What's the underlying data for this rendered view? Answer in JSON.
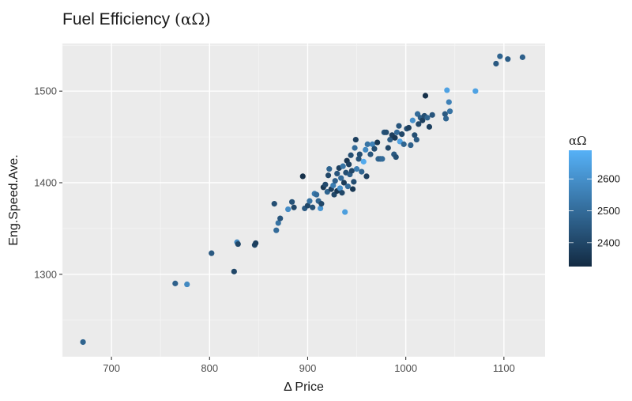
{
  "title_main": "Fuel Efficiency ",
  "title_greek": "(αΩ)",
  "chart_data": {
    "type": "scatter",
    "title": "Fuel Efficiency (αΩ)",
    "xlabel": "Δ Price",
    "ylabel": "Eng.Speed.Ave.",
    "xlim": [
      650,
      1142
    ],
    "ylim": [
      1210,
      1552
    ],
    "x_ticks": [
      700,
      800,
      900,
      1000,
      1100
    ],
    "y_ticks": [
      1300,
      1400,
      1500
    ],
    "grid": true,
    "legend": {
      "title": "αΩ",
      "type": "colorbar",
      "position": "right",
      "range": [
        2325,
        2690
      ],
      "ticks": [
        2400,
        2500,
        2600
      ],
      "color_low": "#132B43",
      "color_high": "#56B1F7"
    },
    "points": [
      {
        "x": 671,
        "y": 1226,
        "c": 2480
      },
      {
        "x": 765,
        "y": 1290,
        "c": 2470
      },
      {
        "x": 777,
        "y": 1289,
        "c": 2580
      },
      {
        "x": 802,
        "y": 1323,
        "c": 2450
      },
      {
        "x": 825,
        "y": 1303,
        "c": 2400
      },
      {
        "x": 828,
        "y": 1335,
        "c": 2580
      },
      {
        "x": 829,
        "y": 1333,
        "c": 2400
      },
      {
        "x": 846,
        "y": 1332,
        "c": 2400
      },
      {
        "x": 847,
        "y": 1334,
        "c": 2380
      },
      {
        "x": 866,
        "y": 1377,
        "c": 2420
      },
      {
        "x": 868,
        "y": 1348,
        "c": 2500
      },
      {
        "x": 870,
        "y": 1356,
        "c": 2520
      },
      {
        "x": 872,
        "y": 1361,
        "c": 2440
      },
      {
        "x": 880,
        "y": 1371,
        "c": 2590
      },
      {
        "x": 884,
        "y": 1379,
        "c": 2430
      },
      {
        "x": 886,
        "y": 1373,
        "c": 2400
      },
      {
        "x": 895,
        "y": 1407,
        "c": 2340
      },
      {
        "x": 897,
        "y": 1372,
        "c": 2450
      },
      {
        "x": 900,
        "y": 1375,
        "c": 2400
      },
      {
        "x": 902,
        "y": 1380,
        "c": 2520
      },
      {
        "x": 905,
        "y": 1373,
        "c": 2430
      },
      {
        "x": 907,
        "y": 1388,
        "c": 2540
      },
      {
        "x": 909,
        "y": 1387,
        "c": 2500
      },
      {
        "x": 911,
        "y": 1380,
        "c": 2480
      },
      {
        "x": 913,
        "y": 1372,
        "c": 2620
      },
      {
        "x": 914,
        "y": 1377,
        "c": 2400
      },
      {
        "x": 916,
        "y": 1395,
        "c": 2360
      },
      {
        "x": 918,
        "y": 1398,
        "c": 2410
      },
      {
        "x": 920,
        "y": 1390,
        "c": 2480
      },
      {
        "x": 921,
        "y": 1408,
        "c": 2400
      },
      {
        "x": 922,
        "y": 1415,
        "c": 2480
      },
      {
        "x": 924,
        "y": 1393,
        "c": 2380
      },
      {
        "x": 926,
        "y": 1397,
        "c": 2550
      },
      {
        "x": 927,
        "y": 1387,
        "c": 2400
      },
      {
        "x": 928,
        "y": 1402,
        "c": 2470
      },
      {
        "x": 930,
        "y": 1410,
        "c": 2440
      },
      {
        "x": 930,
        "y": 1391,
        "c": 2360
      },
      {
        "x": 932,
        "y": 1416,
        "c": 2380
      },
      {
        "x": 933,
        "y": 1394,
        "c": 2600
      },
      {
        "x": 934,
        "y": 1405,
        "c": 2500
      },
      {
        "x": 935,
        "y": 1389,
        "c": 2400
      },
      {
        "x": 936,
        "y": 1418,
        "c": 2520
      },
      {
        "x": 937,
        "y": 1400,
        "c": 2370
      },
      {
        "x": 938,
        "y": 1368,
        "c": 2640
      },
      {
        "x": 939,
        "y": 1411,
        "c": 2420
      },
      {
        "x": 940,
        "y": 1424,
        "c": 2350
      },
      {
        "x": 941,
        "y": 1396,
        "c": 2500
      },
      {
        "x": 942,
        "y": 1420,
        "c": 2380
      },
      {
        "x": 943,
        "y": 1409,
        "c": 2460
      },
      {
        "x": 944,
        "y": 1430,
        "c": 2420
      },
      {
        "x": 945,
        "y": 1413,
        "c": 2400
      },
      {
        "x": 946,
        "y": 1393,
        "c": 2360
      },
      {
        "x": 947,
        "y": 1401,
        "c": 2420
      },
      {
        "x": 948,
        "y": 1438,
        "c": 2500
      },
      {
        "x": 949,
        "y": 1447,
        "c": 2380
      },
      {
        "x": 950,
        "y": 1415,
        "c": 2550
      },
      {
        "x": 952,
        "y": 1426,
        "c": 2430
      },
      {
        "x": 953,
        "y": 1431,
        "c": 2420
      },
      {
        "x": 955,
        "y": 1412,
        "c": 2480
      },
      {
        "x": 957,
        "y": 1423,
        "c": 2670
      },
      {
        "x": 959,
        "y": 1436,
        "c": 2580
      },
      {
        "x": 960,
        "y": 1407,
        "c": 2380
      },
      {
        "x": 961,
        "y": 1442,
        "c": 2520
      },
      {
        "x": 964,
        "y": 1431,
        "c": 2440
      },
      {
        "x": 966,
        "y": 1442,
        "c": 2560
      },
      {
        "x": 968,
        "y": 1437,
        "c": 2420
      },
      {
        "x": 971,
        "y": 1444,
        "c": 2360
      },
      {
        "x": 972,
        "y": 1426,
        "c": 2480
      },
      {
        "x": 974,
        "y": 1426,
        "c": 2470
      },
      {
        "x": 976,
        "y": 1426,
        "c": 2500
      },
      {
        "x": 978,
        "y": 1455,
        "c": 2440
      },
      {
        "x": 980,
        "y": 1455,
        "c": 2420
      },
      {
        "x": 982,
        "y": 1438,
        "c": 2400
      },
      {
        "x": 984,
        "y": 1447,
        "c": 2460
      },
      {
        "x": 986,
        "y": 1452,
        "c": 2380
      },
      {
        "x": 988,
        "y": 1431,
        "c": 2450
      },
      {
        "x": 989,
        "y": 1449,
        "c": 2360
      },
      {
        "x": 990,
        "y": 1428,
        "c": 2420
      },
      {
        "x": 991,
        "y": 1455,
        "c": 2500
      },
      {
        "x": 993,
        "y": 1462,
        "c": 2440
      },
      {
        "x": 994,
        "y": 1445,
        "c": 2650
      },
      {
        "x": 996,
        "y": 1453,
        "c": 2400
      },
      {
        "x": 998,
        "y": 1442,
        "c": 2480
      },
      {
        "x": 1001,
        "y": 1459,
        "c": 2430
      },
      {
        "x": 1003,
        "y": 1460,
        "c": 2380
      },
      {
        "x": 1005,
        "y": 1441,
        "c": 2470
      },
      {
        "x": 1007,
        "y": 1468,
        "c": 2600
      },
      {
        "x": 1009,
        "y": 1452,
        "c": 2420
      },
      {
        "x": 1011,
        "y": 1447,
        "c": 2450
      },
      {
        "x": 1012,
        "y": 1475,
        "c": 2500
      },
      {
        "x": 1013,
        "y": 1464,
        "c": 2400
      },
      {
        "x": 1015,
        "y": 1471,
        "c": 2460
      },
      {
        "x": 1017,
        "y": 1468,
        "c": 2380
      },
      {
        "x": 1019,
        "y": 1473,
        "c": 2420
      },
      {
        "x": 1020,
        "y": 1495,
        "c": 2340
      },
      {
        "x": 1022,
        "y": 1471,
        "c": 2480
      },
      {
        "x": 1024,
        "y": 1461,
        "c": 2380
      },
      {
        "x": 1027,
        "y": 1474,
        "c": 2440
      },
      {
        "x": 1040,
        "y": 1475,
        "c": 2450
      },
      {
        "x": 1041,
        "y": 1470,
        "c": 2480
      },
      {
        "x": 1042,
        "y": 1501,
        "c": 2650
      },
      {
        "x": 1044,
        "y": 1488,
        "c": 2560
      },
      {
        "x": 1045,
        "y": 1478,
        "c": 2520
      },
      {
        "x": 1071,
        "y": 1500,
        "c": 2650
      },
      {
        "x": 1092,
        "y": 1530,
        "c": 2450
      },
      {
        "x": 1096,
        "y": 1538,
        "c": 2480
      },
      {
        "x": 1104,
        "y": 1535,
        "c": 2460
      },
      {
        "x": 1119,
        "y": 1537,
        "c": 2470
      }
    ]
  }
}
